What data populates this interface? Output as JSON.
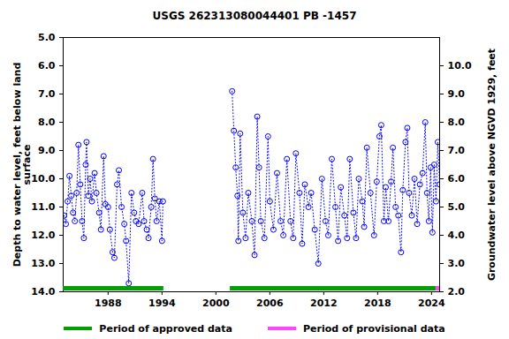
{
  "chart_data": {
    "type": "line",
    "title": "USGS 262313080044401 PB -1457",
    "y_label": "Depth to water level, feet below land\nsurface",
    "y2_label": "Groundwater level above NGVD 1929, feet",
    "xlim": [
      1983.0,
      2024.9
    ],
    "xticks": [
      1988,
      1994,
      2000,
      2006,
      2012,
      2018,
      2024
    ],
    "ylim": [
      5,
      14
    ],
    "yticks": [
      {
        "value": 5,
        "label": "5.0"
      },
      {
        "value": 6,
        "label": "6.0"
      },
      {
        "value": 7,
        "label": "7.0"
      },
      {
        "value": 8,
        "label": "8.0"
      },
      {
        "value": 9,
        "label": "9.0"
      },
      {
        "value": 10,
        "label": "10.0"
      },
      {
        "value": 11,
        "label": "11.0"
      },
      {
        "value": 12,
        "label": "12.0"
      },
      {
        "value": 13,
        "label": "13.0"
      },
      {
        "value": 14,
        "label": "14.0"
      }
    ],
    "y2lim": [
      11,
      2
    ],
    "y2ticks": [
      {
        "value": 10,
        "label": "10.0"
      },
      {
        "value": 9,
        "label": "9.0"
      },
      {
        "value": 8,
        "label": "8.0"
      },
      {
        "value": 7,
        "label": "7.0"
      },
      {
        "value": 6,
        "label": "6.0"
      },
      {
        "value": 5,
        "label": "5.0"
      },
      {
        "value": 4,
        "label": "4.0"
      },
      {
        "value": 3,
        "label": "3.0"
      },
      {
        "value": 2,
        "label": "2.0"
      }
    ],
    "grid": false,
    "marker": "circle",
    "line_style": "dotted",
    "color": "#0000ff",
    "x": [
      1983.1,
      1983.3,
      1983.5,
      1983.7,
      1983.9,
      1984.1,
      1984.3,
      1984.5,
      1984.7,
      1984.9,
      1985.1,
      1985.3,
      1985.5,
      1985.6,
      1985.8,
      1986.0,
      1986.2,
      1986.5,
      1986.7,
      1987.0,
      1987.2,
      1987.5,
      1987.7,
      1988.0,
      1988.2,
      1988.5,
      1988.7,
      1989.0,
      1989.2,
      1989.5,
      1989.8,
      1990.0,
      1990.3,
      1990.6,
      1990.9,
      1991.1,
      1991.4,
      1991.8,
      1992.0,
      1992.3,
      1992.5,
      1992.8,
      1993.0,
      1993.2,
      1993.4,
      1993.7,
      1994.0,
      1994.1,
      1998.0,
      2001.8,
      2002.0,
      2002.2,
      2002.4,
      2002.5,
      2002.7,
      2003.0,
      2003.3,
      2003.6,
      2004.0,
      2004.3,
      2004.6,
      2004.8,
      2005.0,
      2005.4,
      2005.8,
      2006.0,
      2006.4,
      2006.8,
      2007.2,
      2007.5,
      2007.9,
      2008.3,
      2008.6,
      2008.9,
      2009.3,
      2009.6,
      2009.9,
      2010.3,
      2010.6,
      2011.0,
      2011.4,
      2011.8,
      2012.2,
      2012.5,
      2012.9,
      2013.3,
      2013.6,
      2013.9,
      2014.3,
      2014.6,
      2014.9,
      2015.3,
      2015.6,
      2015.9,
      2016.3,
      2016.5,
      2016.8,
      2017.2,
      2017.6,
      2017.9,
      2018.2,
      2018.4,
      2018.7,
      2018.9,
      2019.2,
      2019.5,
      2019.7,
      2020.0,
      2020.3,
      2020.6,
      2020.8,
      2021.1,
      2021.3,
      2021.5,
      2021.8,
      2022.1,
      2022.4,
      2022.7,
      2023.0,
      2023.3,
      2023.5,
      2023.7,
      2023.9,
      2024.1,
      2024.3,
      2024.5,
      2024.7,
      2024.9
    ],
    "values": [
      11.3,
      11.6,
      10.8,
      9.9,
      10.6,
      11.2,
      11.5,
      10.5,
      8.8,
      10.2,
      11.5,
      12.1,
      9.5,
      8.7,
      10.6,
      10.0,
      10.8,
      9.8,
      10.5,
      11.2,
      11.8,
      9.2,
      10.9,
      11.0,
      11.8,
      12.6,
      12.8,
      10.2,
      9.7,
      11.0,
      11.6,
      12.2,
      13.7,
      10.5,
      11.2,
      11.5,
      11.6,
      10.5,
      11.5,
      11.8,
      12.1,
      11.0,
      9.3,
      10.7,
      11.5,
      10.8,
      12.2,
      10.8,
      null,
      6.9,
      8.3,
      9.6,
      10.6,
      12.2,
      8.4,
      11.2,
      12.1,
      10.5,
      11.5,
      12.7,
      7.8,
      9.6,
      11.5,
      12.1,
      8.5,
      10.8,
      11.8,
      9.8,
      11.5,
      12.0,
      9.3,
      11.5,
      12.1,
      9.1,
      10.5,
      12.3,
      10.2,
      11.0,
      10.5,
      11.8,
      13.0,
      10.0,
      11.5,
      12.0,
      9.3,
      11.0,
      12.2,
      10.3,
      11.3,
      12.1,
      9.3,
      11.2,
      12.1,
      10.0,
      10.8,
      11.7,
      8.9,
      10.5,
      12.0,
      10.1,
      8.5,
      8.1,
      11.5,
      10.3,
      11.5,
      10.1,
      8.9,
      11.0,
      11.3,
      12.6,
      10.4,
      8.7,
      8.2,
      10.5,
      11.3,
      10.0,
      11.6,
      10.2,
      9.8,
      8.0,
      10.5,
      11.5,
      9.6,
      11.9,
      9.5,
      10.8,
      8.7,
      10.2
    ],
    "periods": [
      {
        "name": "Period of approved data",
        "color": "#00a000",
        "ranges": [
          [
            1983.0,
            1994.2
          ],
          [
            2001.6,
            2024.5
          ]
        ]
      },
      {
        "name": "Period of provisional data",
        "color": "#ff44ff",
        "ranges": [
          [
            2024.5,
            2024.9
          ]
        ]
      }
    ]
  }
}
